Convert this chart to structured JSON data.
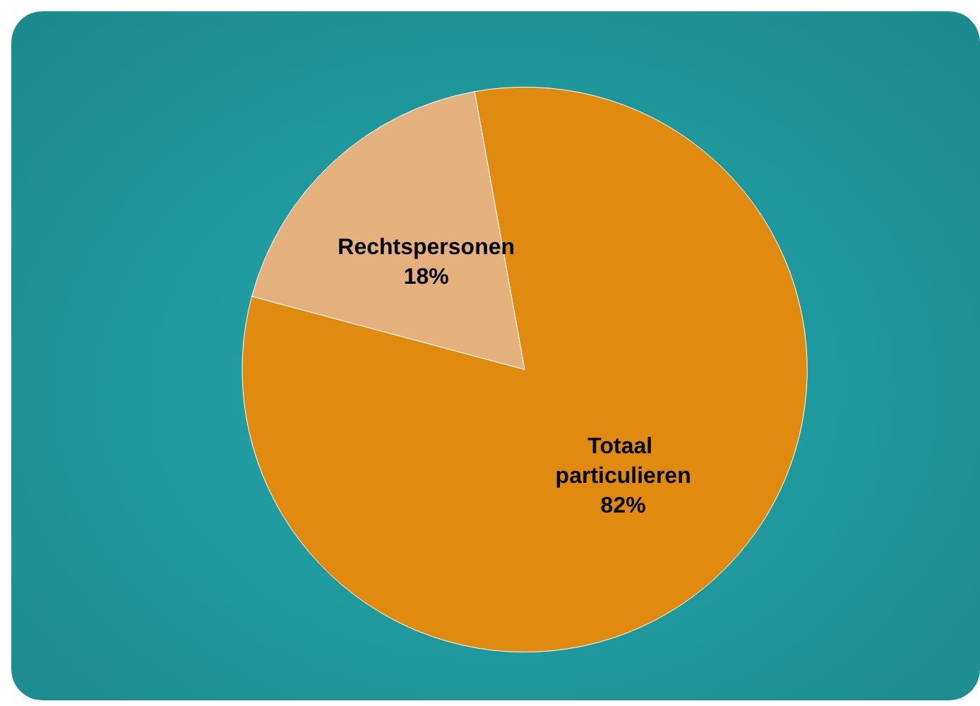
{
  "chart_data": {
    "type": "pie",
    "categories": [
      "Rechtspersonen",
      "Totaal particulieren"
    ],
    "values": [
      18,
      82
    ],
    "colors": [
      "#e4b07e",
      "#e08a10"
    ],
    "value_labels": [
      "18%",
      "82%"
    ],
    "legend": false
  }
}
